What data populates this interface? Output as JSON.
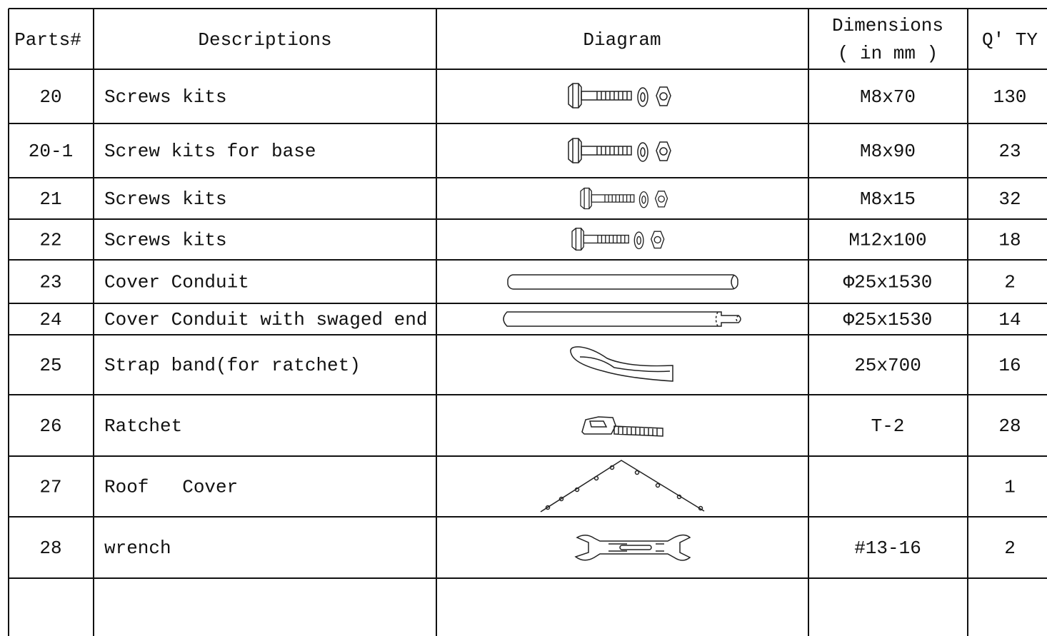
{
  "header": {
    "parts": "Parts#",
    "descriptions": "Descriptions",
    "diagram": "Diagram",
    "dimensions": [
      "Dimensions",
      "( in mm )"
    ],
    "qty": "Q' TY"
  },
  "rows": [
    {
      "part": "20",
      "description": "Screws kits",
      "dimensions": "M8x70",
      "qty": "130"
    },
    {
      "part": "20-1",
      "description": "Screw kits for base",
      "dimensions": "M8x90",
      "qty": "23"
    },
    {
      "part": "21",
      "description": "Screws kits",
      "dimensions": "M8x15",
      "qty": "32"
    },
    {
      "part": "22",
      "description": "Screws kits",
      "dimensions": "M12x100",
      "qty": "18"
    },
    {
      "part": "23",
      "description": "Cover Conduit",
      "dimensions": "Φ25x1530",
      "qty": "2"
    },
    {
      "part": "24",
      "description": "Cover Conduit with swaged end",
      "dimensions": "Φ25x1530",
      "qty": "14"
    },
    {
      "part": "25",
      "description": "Strap band(for ratchet)",
      "dimensions": "25x700",
      "qty": "16"
    },
    {
      "part": "26",
      "description": "Ratchet",
      "dimensions": "T-2",
      "qty": "28"
    },
    {
      "part": "27",
      "description": "Roof   Cover",
      "qty": "1"
    },
    {
      "part": "28",
      "description": "wrench",
      "dimensions": "#13-16",
      "qty": "2"
    }
  ]
}
